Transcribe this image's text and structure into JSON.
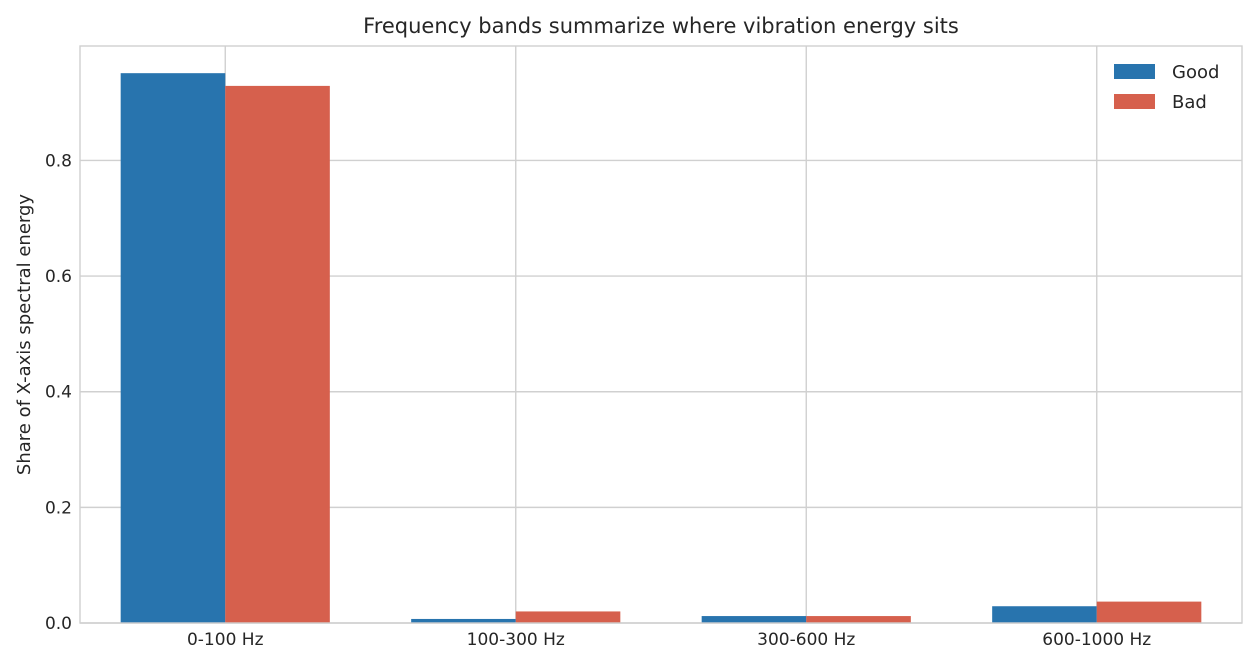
{
  "chart_data": {
    "type": "bar",
    "title": "Frequency bands summarize where vibration energy sits",
    "xlabel": "",
    "ylabel": "Share of X-axis spectral energy",
    "categories": [
      "0-100 Hz",
      "100-300 Hz",
      "300-600 Hz",
      "600-1000 Hz"
    ],
    "series": [
      {
        "name": "Good",
        "color": "#2874ae",
        "values": [
          0.951,
          0.007,
          0.012,
          0.029
        ]
      },
      {
        "name": "Bad",
        "color": "#d6604d",
        "values": [
          0.929,
          0.02,
          0.012,
          0.037
        ]
      }
    ],
    "ylim": [
      0,
      0.998
    ],
    "yticks": [
      0.0,
      0.2,
      0.4,
      0.6,
      0.8
    ],
    "ytick_labels": [
      "0.0",
      "0.2",
      "0.4",
      "0.6",
      "0.8"
    ],
    "grid": true,
    "legend_position": "top-right"
  }
}
